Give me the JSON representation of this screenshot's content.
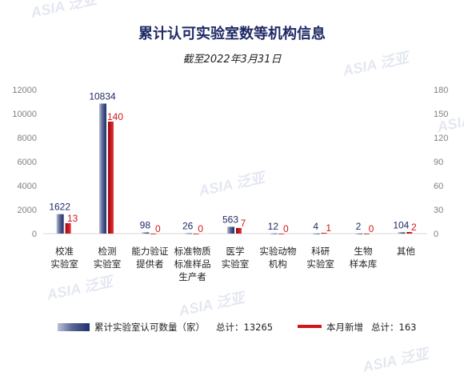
{
  "watermark": "ASIA 泛亚",
  "chart_data": {
    "type": "bar",
    "title": "累计认可实验室数等机构信息",
    "subtitle": "截至2022年3月31日",
    "categories": [
      [
        "校准",
        "实验室"
      ],
      [
        "检测",
        "实验室"
      ],
      [
        "能力验证",
        "提供者"
      ],
      [
        "标准物质",
        "标准样品",
        "生产者"
      ],
      [
        "医学",
        "实验室"
      ],
      [
        "实验动物",
        "机构"
      ],
      [
        "科研",
        "实验室"
      ],
      [
        "生物",
        "样本库"
      ],
      [
        "其他"
      ]
    ],
    "series": [
      {
        "name": "累计实验室认可数量（家）",
        "total_label": "总计：13265",
        "axis": "left",
        "color": "#1f2f6e",
        "values": [
          1622,
          10834,
          98,
          26,
          563,
          12,
          4,
          2,
          104
        ]
      },
      {
        "name": "本月新增",
        "total_label": "总计：163",
        "axis": "right",
        "color": "#d0161b",
        "values": [
          13,
          140,
          0,
          0,
          7,
          0,
          1,
          0,
          2
        ]
      }
    ],
    "y_left": {
      "min": 0,
      "max": 12000,
      "ticks": [
        "0",
        "2000",
        "4000",
        "6000",
        "8000",
        "10000",
        "12000"
      ]
    },
    "y_right": {
      "min": 0,
      "max": 180,
      "ticks": [
        "0",
        "30",
        "60",
        "90",
        "120",
        "150",
        "180"
      ]
    },
    "grid": false,
    "legend_position": "bottom"
  }
}
